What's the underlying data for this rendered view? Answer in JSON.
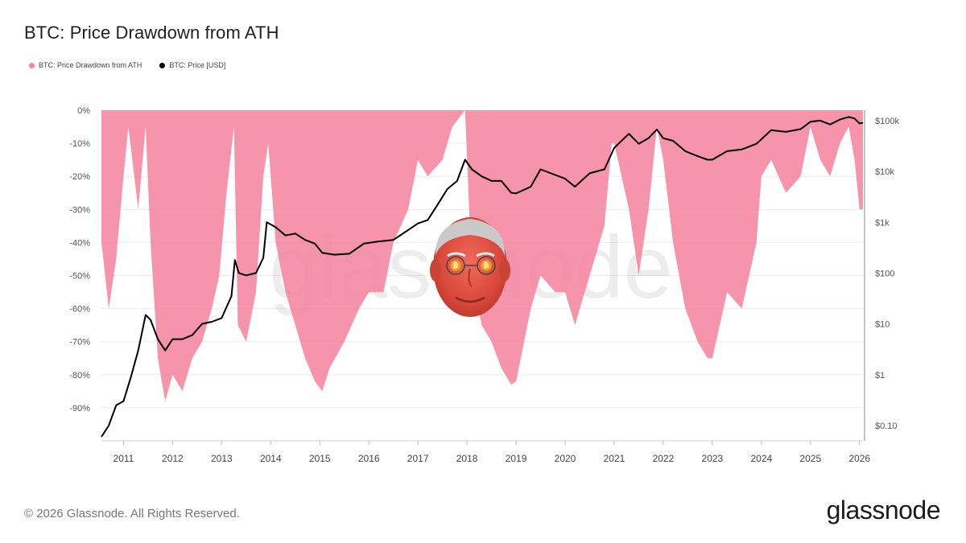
{
  "title": "BTC: Price Drawdown from ATH",
  "legend": [
    {
      "label": "BTC: Price Drawdown from ATH",
      "color": "#f5859f"
    },
    {
      "label": "BTC: Price [USD]",
      "color": "#000000"
    }
  ],
  "footer": {
    "copyright": "© 2026 Glassnode. All Rights Reserved.",
    "logo": "glassnode"
  },
  "watermark": "glassnode",
  "overlay_image": "bald-man-face-with-bitcoin-glasses",
  "chart_data": {
    "type": "area",
    "title": "BTC: Price Drawdown from ATH",
    "x_ticks": [
      "2011",
      "2012",
      "2013",
      "2014",
      "2015",
      "2016",
      "2017",
      "2018",
      "2019",
      "2020",
      "2021",
      "2022",
      "2023",
      "2024",
      "2025",
      "2026"
    ],
    "left_axis": {
      "ticks": [
        "0%",
        "-10%",
        "-20%",
        "-30%",
        "-40%",
        "-50%",
        "-60%",
        "-70%",
        "-80%",
        "-90%"
      ],
      "range": [
        -100,
        0
      ]
    },
    "right_axis": {
      "scale": "log",
      "ticks": [
        "$0.10",
        "$1",
        "$10",
        "$100",
        "$1k",
        "$10k",
        "$100k"
      ],
      "range": [
        0.05,
        160000
      ]
    },
    "grid": "horizontal",
    "legend_position": "top-left",
    "series": [
      {
        "name": "BTC: Price Drawdown from ATH",
        "color": "#f5859f",
        "style": "area",
        "x": [
          2010.55,
          2010.7,
          2010.85,
          2011.0,
          2011.1,
          2011.3,
          2011.45,
          2011.55,
          2011.7,
          2011.85,
          2012.0,
          2012.2,
          2012.4,
          2012.6,
          2012.8,
          2012.95,
          2013.1,
          2013.25,
          2013.33,
          2013.5,
          2013.7,
          2013.85,
          2013.95,
          2014.1,
          2014.3,
          2014.5,
          2014.7,
          2014.9,
          2015.05,
          2015.2,
          2015.5,
          2015.8,
          2016.0,
          2016.3,
          2016.5,
          2016.8,
          2017.0,
          2017.2,
          2017.5,
          2017.7,
          2017.96,
          2018.1,
          2018.3,
          2018.5,
          2018.7,
          2018.9,
          2019.0,
          2019.3,
          2019.5,
          2019.8,
          2020.0,
          2020.2,
          2020.5,
          2020.8,
          2020.95,
          2021.0,
          2021.3,
          2021.5,
          2021.7,
          2021.87,
          2022.0,
          2022.2,
          2022.45,
          2022.7,
          2022.9,
          2023.0,
          2023.3,
          2023.6,
          2023.9,
          2024.0,
          2024.2,
          2024.5,
          2024.8,
          2025.0,
          2025.2,
          2025.4,
          2025.6,
          2025.78,
          2025.9,
          2026.0,
          2026.07
        ],
        "values": [
          -40,
          -60,
          -45,
          -20,
          -5,
          -30,
          -5,
          -40,
          -75,
          -88,
          -80,
          -85,
          -75,
          -70,
          -60,
          -50,
          -25,
          -5,
          -65,
          -70,
          -55,
          -20,
          -10,
          -40,
          -55,
          -65,
          -75,
          -82,
          -85,
          -78,
          -70,
          -60,
          -55,
          -55,
          -40,
          -30,
          -15,
          -20,
          -15,
          -5,
          0,
          -50,
          -65,
          -70,
          -78,
          -83,
          -82,
          -60,
          -50,
          -55,
          -55,
          -65,
          -50,
          -35,
          -10,
          -10,
          -30,
          -50,
          -30,
          -5,
          -15,
          -40,
          -60,
          -70,
          -75,
          -75,
          -55,
          -60,
          -40,
          -20,
          -15,
          -25,
          -20,
          -5,
          -15,
          -20,
          -10,
          -5,
          -15,
          -30,
          -30
        ]
      },
      {
        "name": "BTC: Price [USD]",
        "color": "#000000",
        "style": "line",
        "x": [
          2010.55,
          2010.7,
          2010.85,
          2011.0,
          2011.15,
          2011.3,
          2011.45,
          2011.55,
          2011.7,
          2011.85,
          2012.0,
          2012.2,
          2012.4,
          2012.6,
          2012.8,
          2013.0,
          2013.2,
          2013.27,
          2013.35,
          2013.5,
          2013.7,
          2013.85,
          2013.92,
          2014.1,
          2014.3,
          2014.5,
          2014.7,
          2014.9,
          2015.05,
          2015.3,
          2015.6,
          2015.9,
          2016.2,
          2016.5,
          2016.8,
          2017.0,
          2017.2,
          2017.4,
          2017.6,
          2017.8,
          2017.96,
          2018.1,
          2018.3,
          2018.5,
          2018.7,
          2018.9,
          2019.0,
          2019.3,
          2019.5,
          2019.8,
          2020.0,
          2020.2,
          2020.5,
          2020.8,
          2021.0,
          2021.3,
          2021.5,
          2021.7,
          2021.87,
          2022.0,
          2022.2,
          2022.45,
          2022.7,
          2022.9,
          2023.0,
          2023.3,
          2023.6,
          2023.9,
          2024.0,
          2024.2,
          2024.5,
          2024.8,
          2025.0,
          2025.2,
          2025.4,
          2025.6,
          2025.78,
          2025.9,
          2026.0,
          2026.07
        ],
        "values": [
          0.06,
          0.1,
          0.25,
          0.3,
          0.9,
          3,
          15,
          12,
          5,
          3,
          5,
          5,
          6,
          10,
          11,
          13,
          35,
          180,
          100,
          90,
          100,
          200,
          1000,
          800,
          550,
          600,
          450,
          380,
          250,
          230,
          240,
          380,
          420,
          450,
          700,
          950,
          1100,
          2200,
          4500,
          6500,
          17000,
          11000,
          8000,
          6500,
          6500,
          3800,
          3700,
          5000,
          11000,
          8500,
          7200,
          5000,
          9200,
          11000,
          29000,
          55000,
          35000,
          45000,
          67000,
          45000,
          40000,
          25000,
          20000,
          17000,
          17000,
          25000,
          27000,
          35000,
          43000,
          65000,
          60000,
          68000,
          95000,
          100000,
          84000,
          105000,
          118000,
          110000,
          88000,
          90000
        ]
      }
    ]
  }
}
